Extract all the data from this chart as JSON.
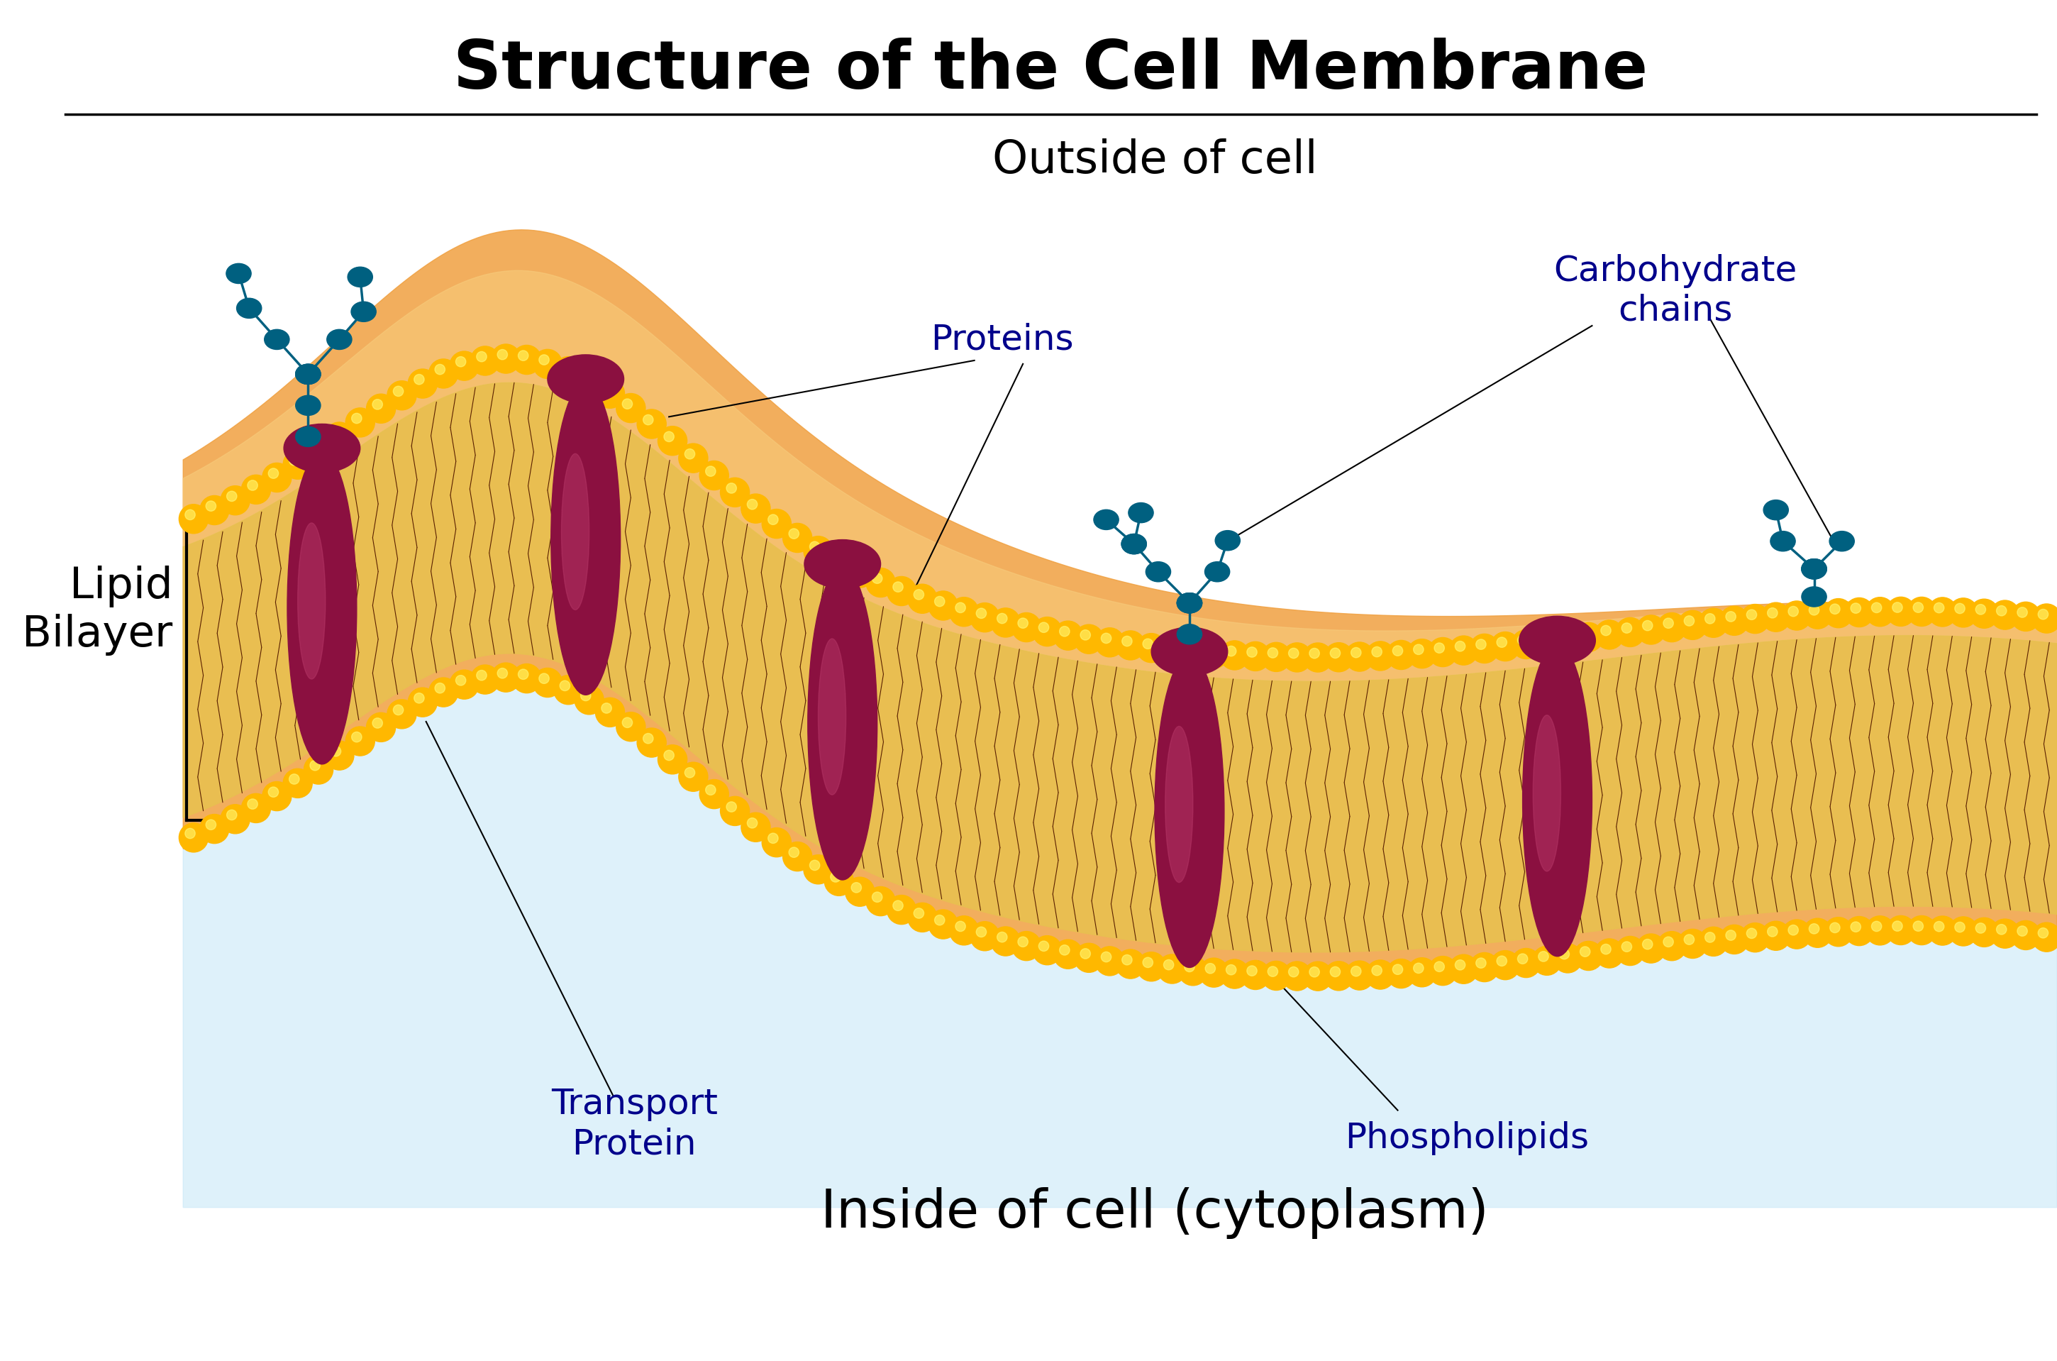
{
  "title": "Structure of the Cell Membrane",
  "title_fontsize": 68,
  "title_fontweight": "bold",
  "outside_label": "Outside of cell",
  "outside_fontsize": 46,
  "inside_label": "Inside of cell (cytoplasm)",
  "inside_fontsize": 54,
  "lipid_bilayer_label": "Lipid\nBilayer",
  "lipid_bilayer_fontsize": 44,
  "proteins_label": "Proteins",
  "proteins_fontsize": 36,
  "transport_protein_label": "Transport\nProtein",
  "transport_protein_fontsize": 36,
  "phospholipids_label": "Phospholipids",
  "phospholipids_fontsize": 36,
  "carbohydrate_label": "Carbohydrate\nchains",
  "carbohydrate_fontsize": 36,
  "label_color": "#00008B",
  "background_color": "#ffffff",
  "phospholipid_head_color": "#FFB800",
  "tail_color": "#5A2000",
  "protein_color": "#8B1040",
  "carbohydrate_color": "#006080",
  "membrane_bg_orange": "#F0A040",
  "membrane_bg_tan": "#F5C87A",
  "cytoplasm_blue": "#C8E8F8"
}
